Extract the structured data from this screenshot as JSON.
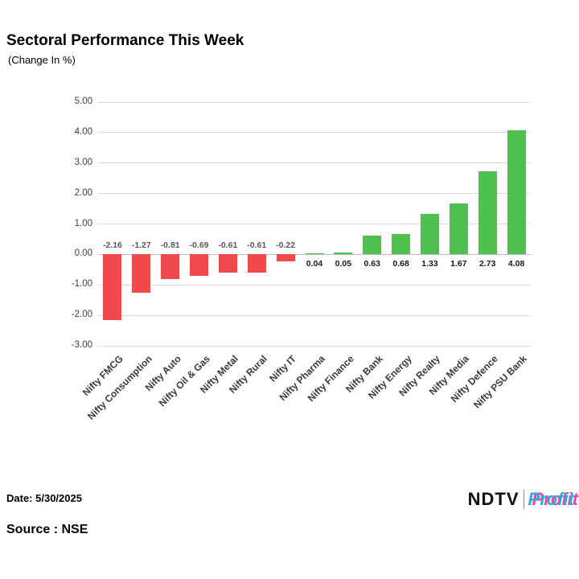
{
  "title": "Sectoral Performance This Week",
  "subtitle": "(Change In %)",
  "footer": {
    "date_label": "Date: 5/30/2025",
    "source_label": "Source : NSE",
    "logo_ndtv": "NDTV",
    "logo_profit": "Profit"
  },
  "colors": {
    "negative": "#f04a4c",
    "positive": "#4dc04d",
    "grid": "#d9d9d9",
    "label_negative": "#595959",
    "label_positive": "#1a1a1a"
  },
  "chart_data": {
    "type": "bar",
    "title": "Sectoral Performance This Week",
    "subtitle": "(Change In %)",
    "categories": [
      "Nifty FMCG",
      "Nifty Consumption",
      "Nifty Auto",
      "Nifty Oil & Gas",
      "Nifty Metal",
      "Nifty Rural",
      "Nifty IT",
      "Nifty Pharma",
      "Nifty Finance",
      "Nifty Bank",
      "Nifty Energy",
      "Nifty Realty",
      "Nifty Media",
      "Nifty Defence",
      "Nifty PSU Bank"
    ],
    "values": [
      -2.16,
      -1.27,
      -0.81,
      -0.69,
      -0.61,
      -0.61,
      -0.22,
      0.04,
      0.05,
      0.63,
      0.68,
      1.33,
      1.67,
      2.73,
      4.08
    ],
    "xlabel": "",
    "ylabel": "",
    "ylim": [
      -3,
      5
    ],
    "ytick_step": 1,
    "ytick_format": "0.00",
    "grid": true,
    "legend": "none",
    "negative_color": "red",
    "positive_color": "green"
  }
}
